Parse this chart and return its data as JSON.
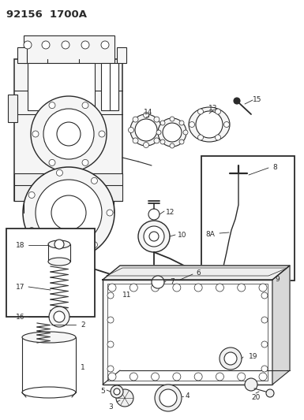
{
  "title": "92156  1700A",
  "bg_color": "#ffffff",
  "lc": "#2a2a2a",
  "lw": 0.8,
  "fig_w": 3.85,
  "fig_h": 5.33,
  "dpi": 100
}
